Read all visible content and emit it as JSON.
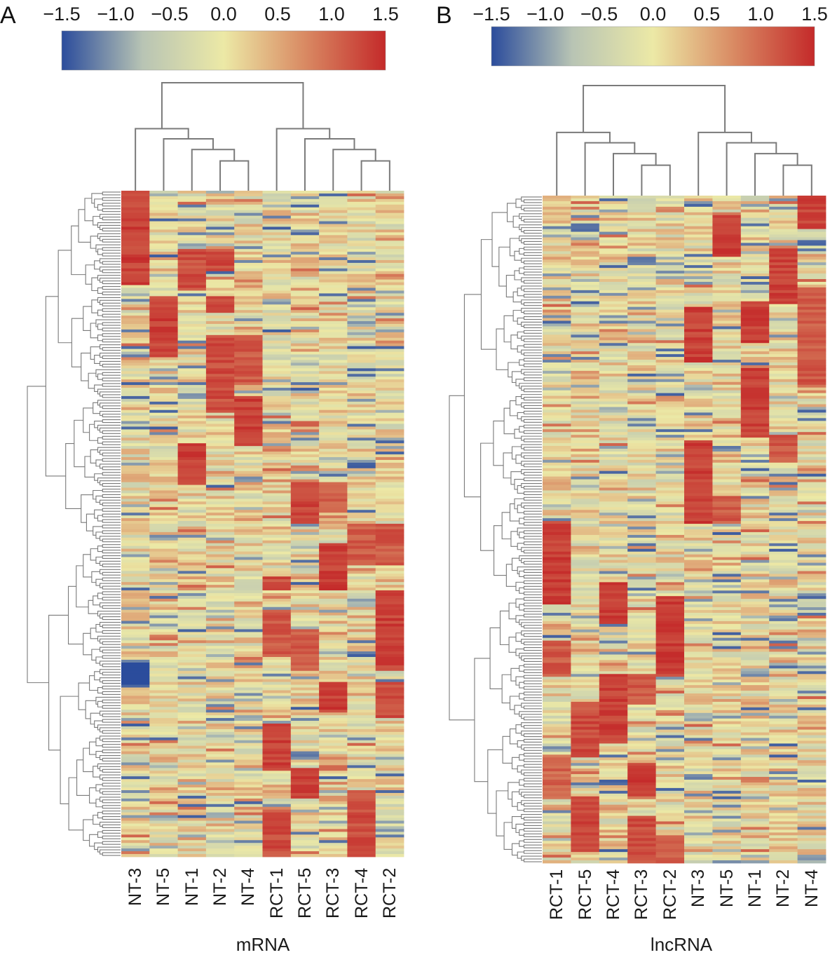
{
  "chart_data": [
    {
      "type": "heatmap",
      "panel": "A",
      "title": "",
      "xlabel": "mRNA",
      "ylabel": "",
      "colorbar": {
        "min": -1.5,
        "max": 1.5,
        "ticks": [
          "−1.5",
          "−1.0",
          "−0.5",
          "0.0",
          "0.5",
          "1.0",
          "1.5"
        ],
        "tick_values": [
          -1.5,
          -1.0,
          -0.5,
          0.0,
          0.5,
          1.0,
          1.5
        ],
        "colors": [
          "#2b4c9c",
          "#b8c4b4",
          "#ece9a6",
          "#d98a63",
          "#c42a2a"
        ]
      },
      "columns": [
        "NT-3",
        "NT-5",
        "NT-1",
        "NT-2",
        "NT-4",
        "RCT-1",
        "RCT-5",
        "RCT-3",
        "RCT-4",
        "RCT-2"
      ],
      "column_dendrogram": true,
      "row_dendrogram": true,
      "row_count": 240,
      "clusters": [
        {
          "column": "NT-3",
          "rows": [
            0.0,
            0.14
          ],
          "value": 1.5
        },
        {
          "column": "NT-1",
          "rows": [
            0.09,
            0.15
          ],
          "value": 1.4
        },
        {
          "column": "NT-2",
          "rows": [
            0.09,
            0.12
          ],
          "value": 1.4
        },
        {
          "column": "NT-5",
          "rows": [
            0.16,
            0.25
          ],
          "value": 1.5
        },
        {
          "column": "NT-2",
          "rows": [
            0.16,
            0.18
          ],
          "value": 1.4
        },
        {
          "column": "NT-2",
          "rows": [
            0.22,
            0.33
          ],
          "value": 1.4
        },
        {
          "column": "NT-4",
          "rows": [
            0.22,
            0.29
          ],
          "value": 1.3
        },
        {
          "column": "NT-4",
          "rows": [
            0.31,
            0.38
          ],
          "value": 1.5
        },
        {
          "column": "NT-1",
          "rows": [
            0.38,
            0.44
          ],
          "value": 1.5
        },
        {
          "column": "RCT-5",
          "rows": [
            0.44,
            0.5
          ],
          "value": 1.5
        },
        {
          "column": "RCT-3",
          "rows": [
            0.44,
            0.48
          ],
          "value": 1.3
        },
        {
          "column": "RCT-3",
          "rows": [
            0.53,
            0.6
          ],
          "value": 1.5
        },
        {
          "column": "RCT-4",
          "rows": [
            0.5,
            0.56
          ],
          "value": 1.3
        },
        {
          "column": "RCT-2",
          "rows": [
            0.5,
            0.56
          ],
          "value": 1.3
        },
        {
          "column": "RCT-2",
          "rows": [
            0.6,
            0.72
          ],
          "value": 1.5
        },
        {
          "column": "RCT-1",
          "rows": [
            0.58,
            0.6
          ],
          "value": 1.4
        },
        {
          "column": "RCT-1",
          "rows": [
            0.63,
            0.7
          ],
          "value": 1.3
        },
        {
          "column": "RCT-5",
          "rows": [
            0.66,
            0.72
          ],
          "value": 1.3
        },
        {
          "column": "RCT-3",
          "rows": [
            0.74,
            0.78
          ],
          "value": 1.5
        },
        {
          "column": "RCT-2",
          "rows": [
            0.74,
            0.79
          ],
          "value": 1.4
        },
        {
          "column": "NT-3",
          "rows": [
            0.71,
            0.74
          ],
          "value": -1.5
        },
        {
          "column": "RCT-1",
          "rows": [
            0.8,
            0.87
          ],
          "value": 1.5
        },
        {
          "column": "RCT-5",
          "rows": [
            0.87,
            0.91
          ],
          "value": 1.5
        },
        {
          "column": "RCT-4",
          "rows": [
            0.9,
            1.0
          ],
          "value": 1.4
        },
        {
          "column": "RCT-1",
          "rows": [
            0.93,
            1.0
          ],
          "value": 1.4
        }
      ]
    },
    {
      "type": "heatmap",
      "panel": "B",
      "title": "",
      "xlabel": "lncRNA",
      "ylabel": "",
      "colorbar": {
        "min": -1.5,
        "max": 1.5,
        "ticks": [
          "−1.5",
          "−1.0",
          "−0.5",
          "0.0",
          "0.5",
          "1.0",
          "1.5"
        ],
        "tick_values": [
          -1.5,
          -1.0,
          -0.5,
          0.0,
          0.5,
          1.0,
          1.5
        ],
        "colors": [
          "#2b4c9c",
          "#b8c4b4",
          "#ece9a6",
          "#d98a63",
          "#c42a2a"
        ]
      },
      "columns": [
        "RCT-1",
        "RCT-5",
        "RCT-4",
        "RCT-3",
        "RCT-2",
        "NT-3",
        "NT-5",
        "NT-1",
        "NT-2",
        "NT-4"
      ],
      "column_dendrogram": true,
      "row_dendrogram": true,
      "row_count": 240,
      "clusters": [
        {
          "column": "NT-4",
          "rows": [
            0.0,
            0.05
          ],
          "value": 1.5
        },
        {
          "column": "NT-5",
          "rows": [
            0.03,
            0.09
          ],
          "value": 1.5
        },
        {
          "column": "NT-2",
          "rows": [
            0.08,
            0.16
          ],
          "value": 1.5
        },
        {
          "column": "NT-4",
          "rows": [
            0.14,
            0.28
          ],
          "value": 1.3
        },
        {
          "column": "NT-3",
          "rows": [
            0.17,
            0.25
          ],
          "value": 1.5
        },
        {
          "column": "NT-1",
          "rows": [
            0.16,
            0.22
          ],
          "value": 1.5
        },
        {
          "column": "NT-1",
          "rows": [
            0.26,
            0.36
          ],
          "value": 1.5
        },
        {
          "column": "NT-2",
          "rows": [
            0.36,
            0.4
          ],
          "value": 1.3
        },
        {
          "column": "NT-3",
          "rows": [
            0.37,
            0.49
          ],
          "value": 1.5
        },
        {
          "column": "NT-5",
          "rows": [
            0.45,
            0.49
          ],
          "value": 1.3
        },
        {
          "column": "RCT-1",
          "rows": [
            0.49,
            0.61
          ],
          "value": 1.5
        },
        {
          "column": "RCT-4",
          "rows": [
            0.58,
            0.64
          ],
          "value": 1.5
        },
        {
          "column": "RCT-2",
          "rows": [
            0.6,
            0.72
          ],
          "value": 1.5
        },
        {
          "column": "RCT-1",
          "rows": [
            0.67,
            0.72
          ],
          "value": 1.3
        },
        {
          "column": "RCT-4",
          "rows": [
            0.72,
            0.82
          ],
          "value": 1.5
        },
        {
          "column": "RCT-5",
          "rows": [
            0.76,
            0.84
          ],
          "value": 1.4
        },
        {
          "column": "RCT-3",
          "rows": [
            0.72,
            0.76
          ],
          "value": 1.3
        },
        {
          "column": "RCT-3",
          "rows": [
            0.85,
            0.9
          ],
          "value": 1.5
        },
        {
          "column": "RCT-5",
          "rows": [
            0.9,
            0.98
          ],
          "value": 1.5
        },
        {
          "column": "RCT-3",
          "rows": [
            0.93,
            1.0
          ],
          "value": 1.4
        },
        {
          "column": "RCT-2",
          "rows": [
            0.96,
            1.0
          ],
          "value": 1.3
        },
        {
          "column": "RCT-1",
          "rows": [
            0.84,
            0.9
          ],
          "value": 1.2
        }
      ]
    }
  ],
  "panels": {
    "a": {
      "letter": "A",
      "caption": "mRNA"
    },
    "b": {
      "letter": "B",
      "caption": "lncRNA"
    }
  }
}
